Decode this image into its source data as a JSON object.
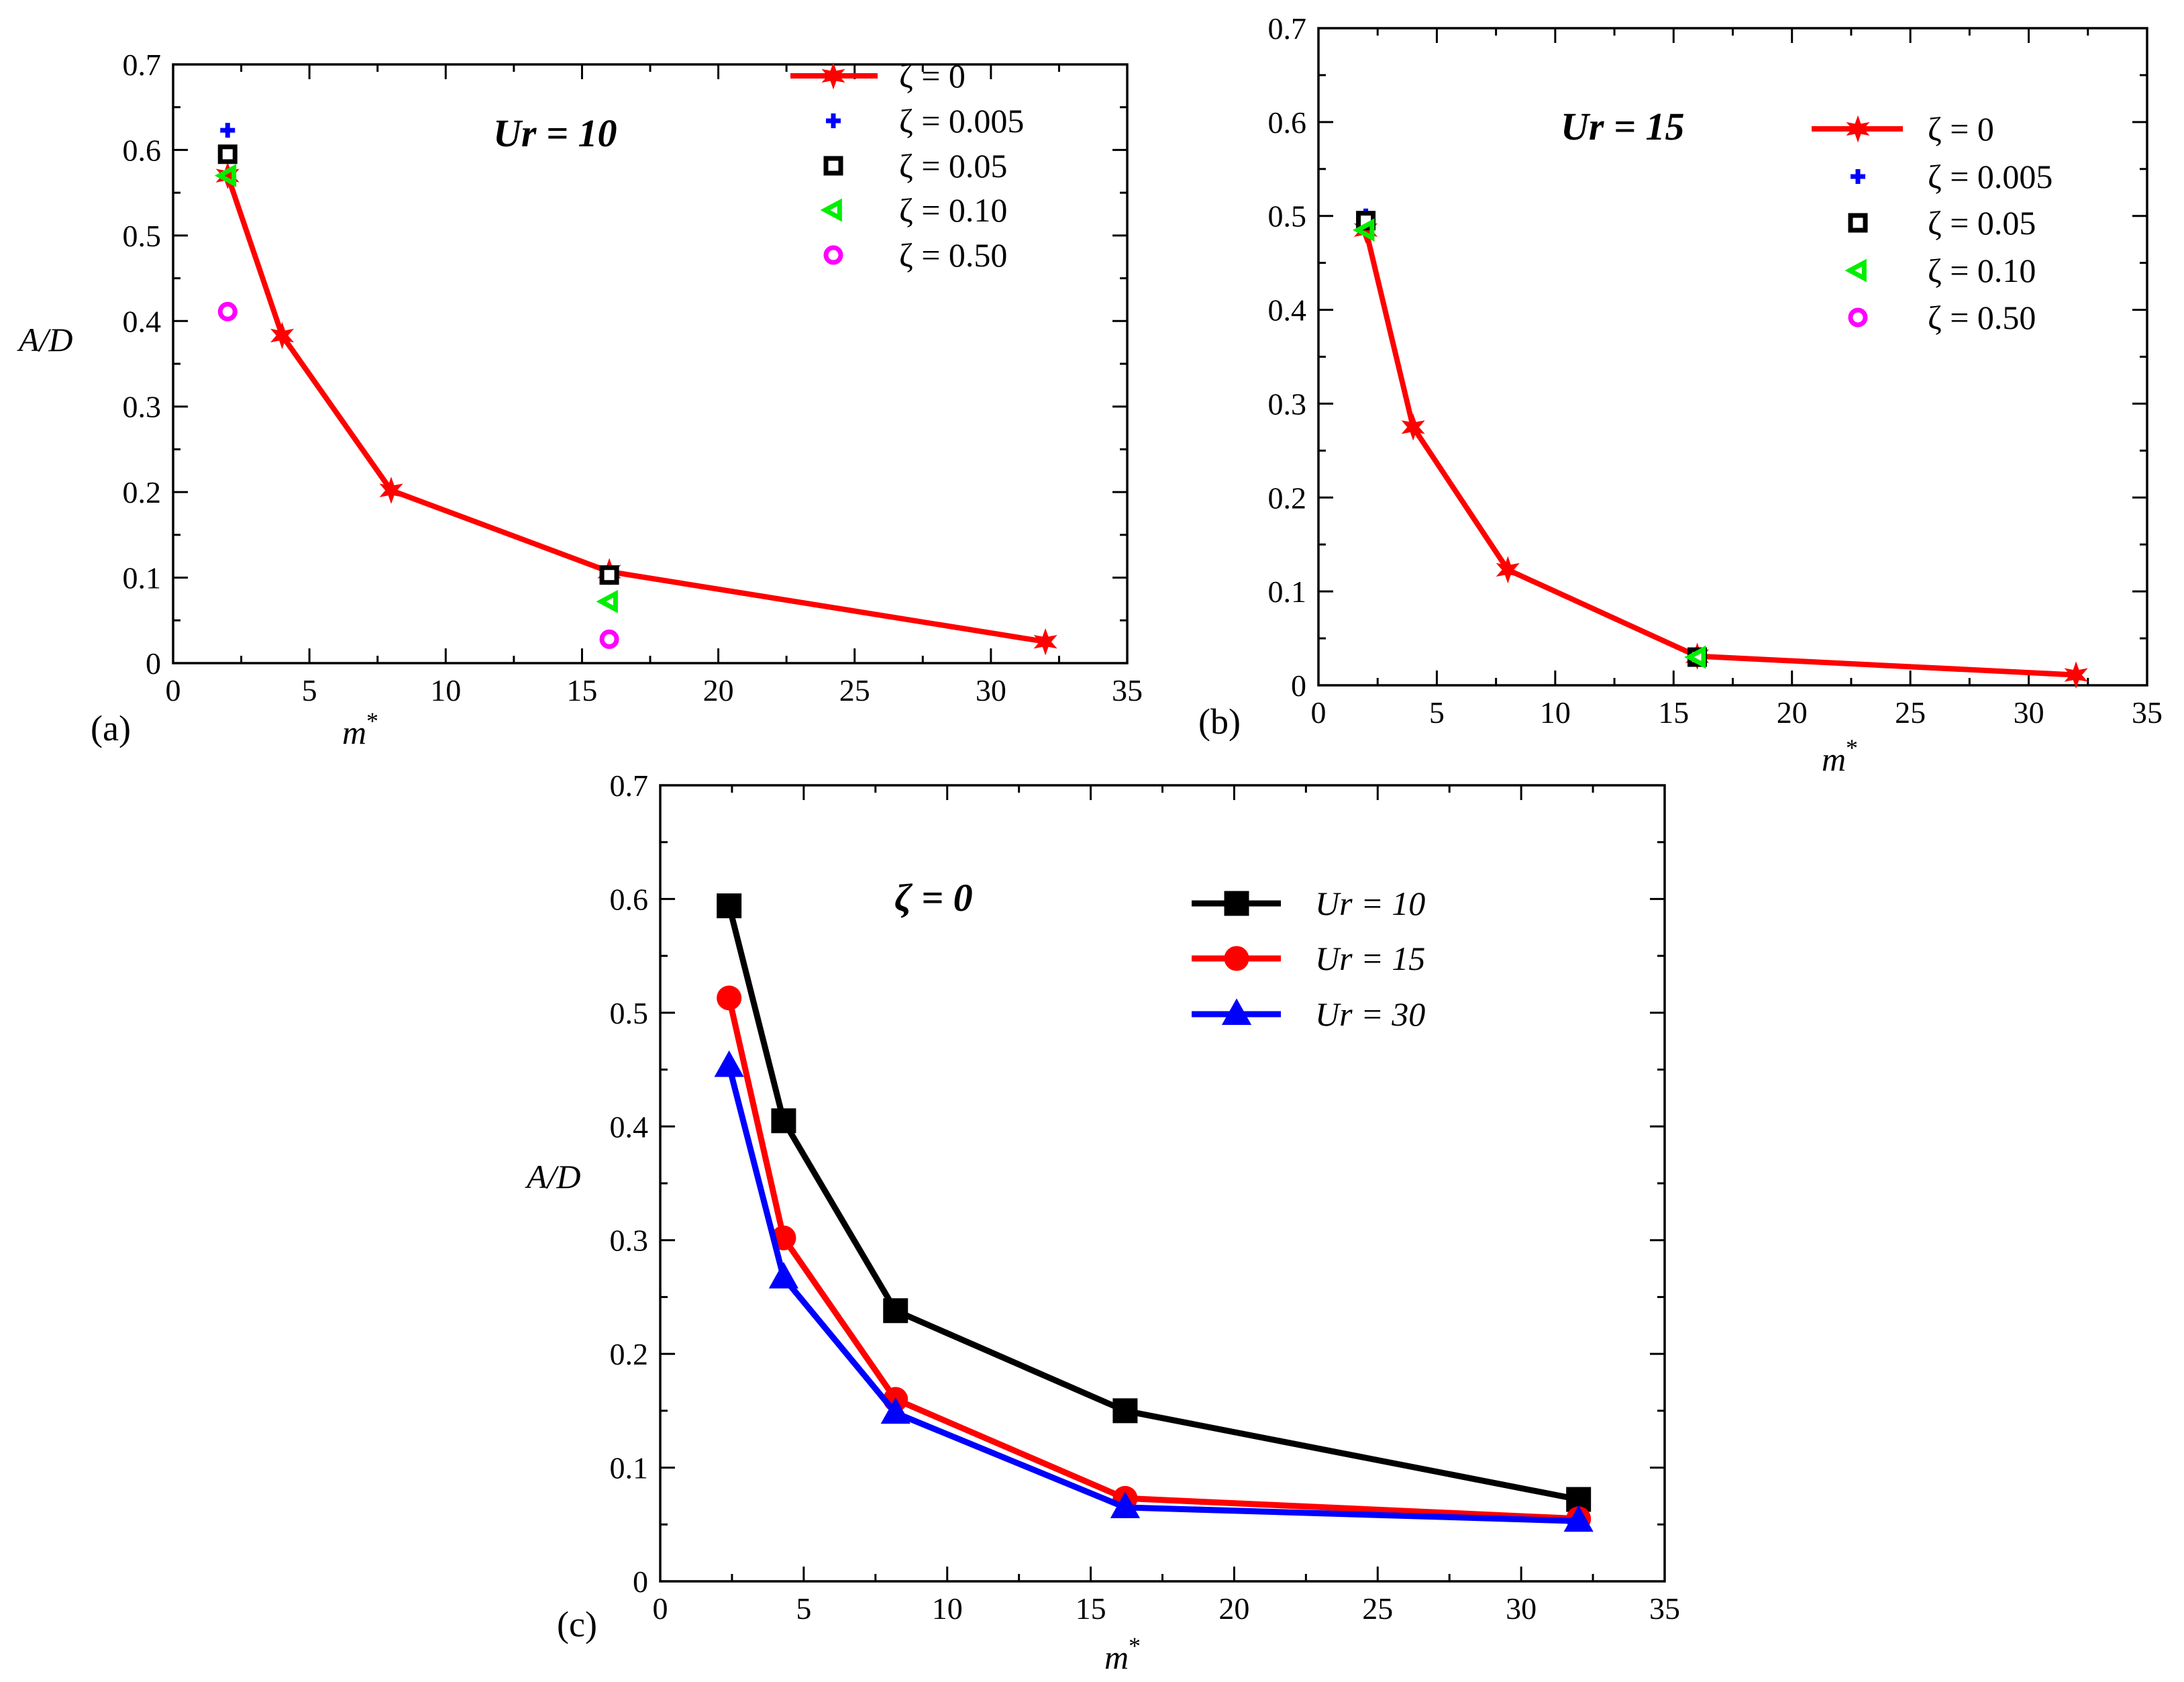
{
  "figure": {
    "panels": [
      "(a)",
      "(b)",
      "(c)"
    ]
  },
  "chart_data": [
    {
      "type": "scatter",
      "panel_label": "(a)",
      "annotation": "Ur = 10",
      "xlabel": "m*",
      "ylabel": "A/D",
      "xlim": [
        0,
        35
      ],
      "ylim": [
        0,
        0.7
      ],
      "xticks": [
        "0",
        "5",
        "10",
        "15",
        "20",
        "25",
        "30",
        "35"
      ],
      "yticks": [
        "0",
        "0.1",
        "0.2",
        "0.3",
        "0.4",
        "0.5",
        "0.6",
        "0.7"
      ],
      "legend_position": "top-right",
      "series": [
        {
          "name": "ζ  = 0",
          "color": "#ff0000",
          "marker": "star",
          "line": true,
          "x": [
            2,
            4,
            8,
            16,
            32
          ],
          "y": [
            0.57,
            0.383,
            0.202,
            0.107,
            0.025
          ]
        },
        {
          "name": "ζ  = 0.005",
          "color": "#0000ff",
          "marker": "plus",
          "line": false,
          "x": [
            2,
            16
          ],
          "y": [
            0.623,
            0.105
          ]
        },
        {
          "name": "ζ  = 0.05",
          "color": "#000000",
          "marker": "square",
          "line": false,
          "x": [
            2,
            16
          ],
          "y": [
            0.595,
            0.103
          ]
        },
        {
          "name": "ζ  = 0.10",
          "color": "#00ee00",
          "marker": "triangle-left",
          "line": false,
          "x": [
            2,
            16
          ],
          "y": [
            0.57,
            0.072
          ]
        },
        {
          "name": "ζ  = 0.50",
          "color": "#ff00ff",
          "marker": "circle",
          "line": false,
          "x": [
            2,
            16
          ],
          "y": [
            0.411,
            0.028
          ]
        }
      ]
    },
    {
      "type": "scatter",
      "panel_label": "(b)",
      "annotation": "Ur = 15",
      "xlabel": "m*",
      "ylabel": "",
      "xlim": [
        0,
        35
      ],
      "ylim": [
        0,
        0.7
      ],
      "xticks": [
        "0",
        "5",
        "10",
        "15",
        "20",
        "25",
        "30",
        "35"
      ],
      "yticks": [
        "0",
        "0.1",
        "0.2",
        "0.3",
        "0.4",
        "0.5",
        "0.6",
        "0.7"
      ],
      "legend_position": "top-right",
      "series": [
        {
          "name": "ζ  = 0",
          "color": "#ff0000",
          "marker": "star",
          "line": true,
          "x": [
            2,
            4,
            8,
            16,
            32
          ],
          "y": [
            0.485,
            0.275,
            0.123,
            0.031,
            0.011
          ]
        },
        {
          "name": "ζ  = 0.005",
          "color": "#0000ff",
          "marker": "plus",
          "line": false,
          "x": [
            2,
            16
          ],
          "y": [
            0.5,
            0.03
          ]
        },
        {
          "name": "ζ  = 0.05",
          "color": "#000000",
          "marker": "square",
          "line": false,
          "x": [
            2,
            16
          ],
          "y": [
            0.495,
            0.03
          ]
        },
        {
          "name": "ζ  = 0.10",
          "color": "#00ee00",
          "marker": "triangle-left",
          "line": false,
          "x": [
            2,
            16
          ],
          "y": [
            0.485,
            0.03
          ]
        },
        {
          "name": "ζ  = 0.50",
          "color": "#ff00ff",
          "marker": "circle",
          "line": false,
          "x": [],
          "y": []
        }
      ]
    },
    {
      "type": "line",
      "panel_label": "(c)",
      "annotation": "ζ  = 0",
      "xlabel": "m*",
      "ylabel": "A/D",
      "xlim": [
        0,
        35
      ],
      "ylim": [
        0,
        0.7
      ],
      "xticks": [
        "0",
        "5",
        "10",
        "15",
        "20",
        "25",
        "30",
        "35"
      ],
      "yticks": [
        "0",
        "0.1",
        "0.2",
        "0.3",
        "0.4",
        "0.5",
        "0.6",
        "0.7"
      ],
      "legend_position": "top-right",
      "series": [
        {
          "name": "Ur = 10",
          "color": "#000000",
          "marker": "square",
          "line": true,
          "x": [
            2.4,
            4.3,
            8.2,
            16.2,
            32
          ],
          "y": [
            0.594,
            0.405,
            0.238,
            0.15,
            0.072
          ]
        },
        {
          "name": "Ur = 15",
          "color": "#ff0000",
          "marker": "circle",
          "line": true,
          "x": [
            2.4,
            4.3,
            8.2,
            16.2,
            32
          ],
          "y": [
            0.513,
            0.302,
            0.16,
            0.073,
            0.055
          ]
        },
        {
          "name": "Ur = 30",
          "color": "#0000ff",
          "marker": "triangle-up",
          "line": true,
          "x": [
            2.4,
            4.3,
            8.2,
            16.2,
            32
          ],
          "y": [
            0.453,
            0.267,
            0.148,
            0.065,
            0.053
          ]
        }
      ]
    }
  ]
}
